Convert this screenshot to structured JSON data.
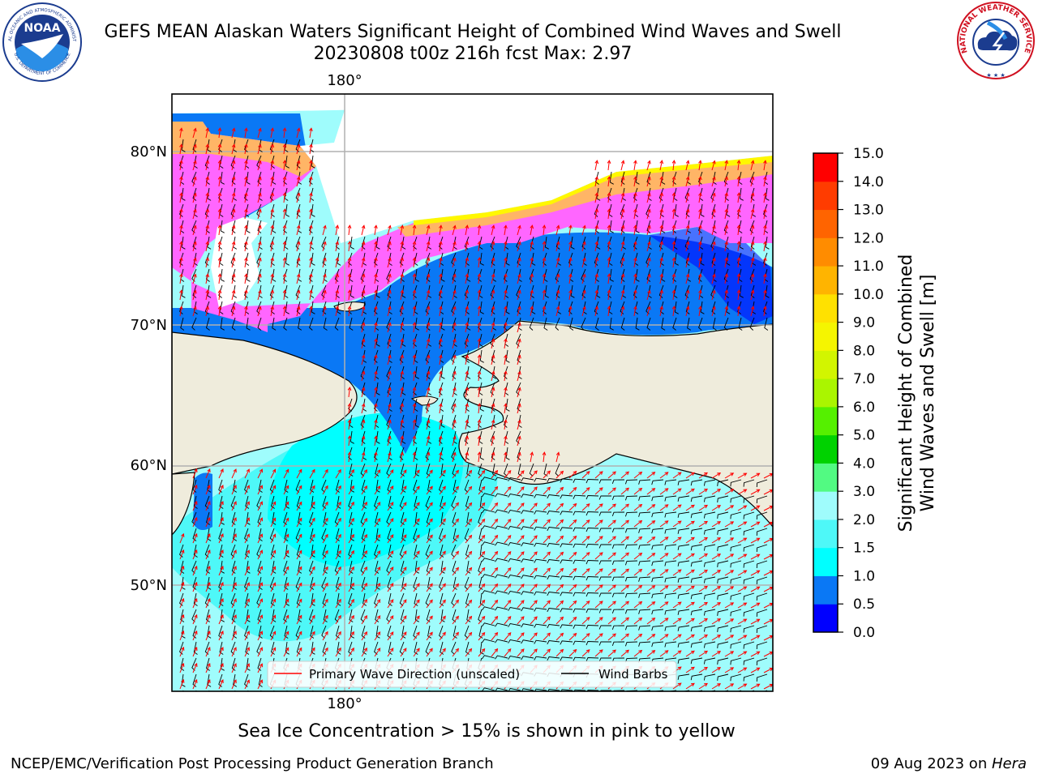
{
  "header": {
    "title_line1": "GEFS MEAN Alaskan Waters Significant Height of Combined Wind Waves and Swell",
    "title_line2": "20230808 t00z 216h fcst   Max: 2.97"
  },
  "logos": {
    "noaa_text": "NOAA",
    "noaa_ring_top": "NATIONAL OCEANIC AND ATMOSPHERIC ADMINISTRATION",
    "noaa_ring_bottom": "U.S. DEPARTMENT OF COMMERCE",
    "nws_ring": "NATIONAL WEATHER SERVICE"
  },
  "map": {
    "lon_label_top": "180°",
    "lon_label_bottom": "180°",
    "lat_labels": [
      "80°N",
      "70°N",
      "60°N",
      "50°N"
    ],
    "legend": {
      "wave_direction": "Primary Wave Direction (unscaled)",
      "wind_barbs": "Wind Barbs"
    },
    "colors": {
      "land": "#efecdc",
      "ocean_open": "#9ffcfc",
      "ocean_mid": "#4ef8f8",
      "ocean_shallow": "#00ffff",
      "ocean_blue": "#0a78f5",
      "ocean_deep": "#0000ff",
      "ice_pink": "#ff66ff",
      "ice_orange": "#ffb566",
      "ice_yellow": "#fff700",
      "arrow": "#ff0000",
      "barb": "#000000"
    }
  },
  "colorbar": {
    "label_line1": "Significant Height of Combined",
    "label_line2": "Wind Waves and Swell [m]",
    "ticks": [
      "0.0",
      "0.5",
      "1.0",
      "1.5",
      "2.0",
      "3.0",
      "4.0",
      "5.0",
      "6.0",
      "7.0",
      "8.0",
      "9.0",
      "10.0",
      "11.0",
      "12.0",
      "13.0",
      "14.0",
      "15.0"
    ],
    "colors": [
      "#0000ff",
      "#0a78f5",
      "#00ffff",
      "#4ef8f8",
      "#9ffcfc",
      "#52fa82",
      "#00d200",
      "#55f000",
      "#aaf500",
      "#d2f500",
      "#f5f500",
      "#ffe100",
      "#ffb400",
      "#ff8c00",
      "#ff6400",
      "#ff3c00",
      "#ff0000"
    ]
  },
  "footer": {
    "note": "Sea Ice Concentration > 15% is shown in pink to yellow",
    "left": "NCEP/EMC/Verification Post Processing Product Generation Branch",
    "date": "09 Aug 2023 on ",
    "host": "Hera"
  }
}
